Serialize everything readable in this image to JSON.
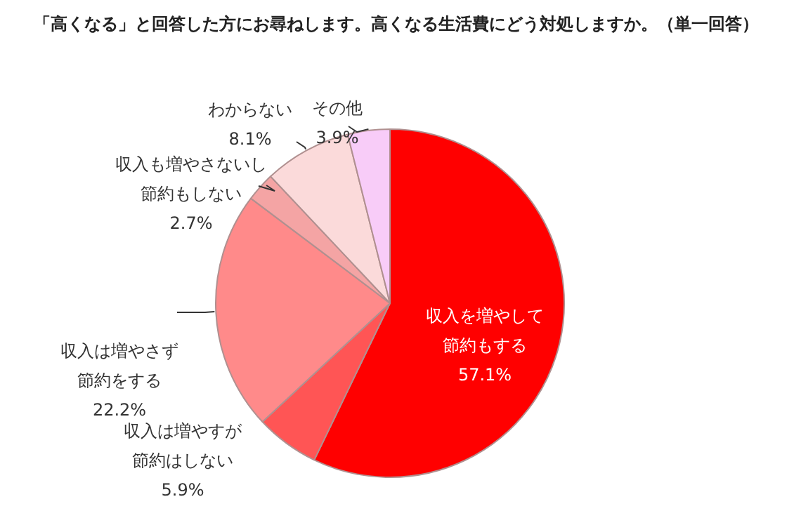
{
  "chart_data": {
    "type": "pie",
    "title": "「高くなる」と回答した方にお尋ねします。高くなる生活費にどう対処しますか。（単一回答）",
    "categories": [
      "収入を増やして節約もする",
      "収入は増やすが節約はしない",
      "収入は増やさず節約をする",
      "収入も増やさないし節約もしない",
      "わからない",
      "その他"
    ],
    "values": [
      57.1,
      5.9,
      22.2,
      2.7,
      8.1,
      3.9
    ],
    "value_labels": [
      "57.1%",
      "5.9%",
      "22.2%",
      "2.7%",
      "8.1%",
      "3.9%"
    ],
    "colors": [
      "#ff0000",
      "#ff5555",
      "#ff8a8a",
      "#f4a4a4",
      "#fbdada",
      "#f8ccf8"
    ],
    "legend": false
  }
}
